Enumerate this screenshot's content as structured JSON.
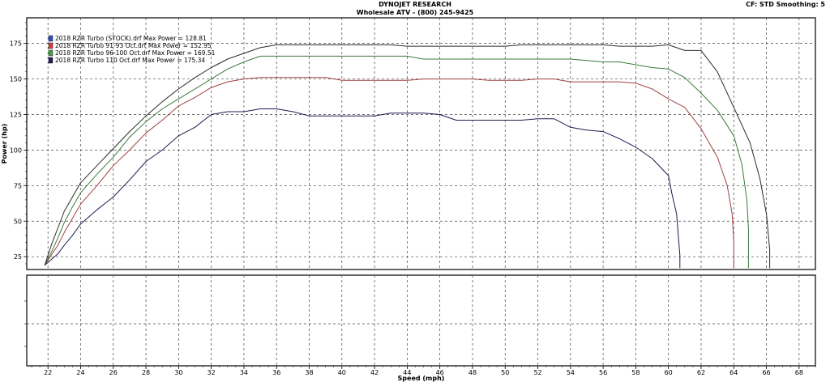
{
  "header": {
    "title": "DYNOJET RESEARCH",
    "subtitle": "Wholesale ATV - (800) 245-9425",
    "settings": "CF: STD  Smoothing: 5"
  },
  "chart_data": {
    "type": "line",
    "ylabel": "Power (hp)",
    "xlabel": "Speed (mph)",
    "xlim": [
      20.7,
      69.0
    ],
    "ylim": [
      16,
      193
    ],
    "x_ticks": [
      22,
      24,
      26,
      28,
      30,
      32,
      34,
      36,
      38,
      40,
      42,
      44,
      46,
      48,
      50,
      52,
      54,
      56,
      58,
      60,
      62,
      64,
      66,
      68
    ],
    "y_ticks": [
      25,
      50,
      75,
      100,
      125,
      150,
      175
    ],
    "grid": true,
    "legend_position": "top-left",
    "series": [
      {
        "name": "2018 RZR Turbo (STOCK).drf Max Power = 128.81",
        "color": "#1c1c50",
        "swatch": "#3050c8",
        "x": [
          21.8,
          22.2,
          22.6,
          23.0,
          23.5,
          24,
          25,
          26,
          27,
          28,
          29,
          30,
          31,
          32,
          33,
          34,
          35,
          36,
          37,
          38,
          39,
          40,
          41,
          42,
          43,
          44,
          45,
          46,
          47,
          48,
          49,
          50,
          51,
          52,
          53,
          54,
          55,
          56,
          57,
          58,
          59,
          60,
          60.2,
          60.5,
          60.6,
          60.7,
          60.7,
          60.7
        ],
        "y": [
          19,
          23,
          27,
          33,
          40,
          48,
          58,
          67,
          79,
          92,
          100,
          110,
          116,
          125,
          127,
          127,
          129,
          129,
          127,
          124,
          124,
          124,
          124,
          124,
          126,
          126,
          126,
          125,
          121,
          121,
          121,
          121,
          121,
          122,
          122,
          116,
          114,
          113,
          108,
          102,
          94,
          82,
          70,
          55,
          40,
          26,
          20,
          17
        ]
      },
      {
        "name": "2018 RZR Turbo 91-93 Oct.drf Max Power = 152.95",
        "color": "#a04040",
        "swatch": "#d04040",
        "x": [
          21.8,
          22.2,
          22.6,
          23.0,
          23.5,
          24,
          25,
          26,
          27,
          28,
          29,
          30,
          31,
          32,
          33,
          34,
          35,
          36,
          37,
          38,
          39,
          40,
          41,
          42,
          43,
          44,
          45,
          46,
          47,
          48,
          49,
          50,
          51,
          52,
          53,
          54,
          55,
          56,
          57,
          58,
          59,
          60,
          61,
          62,
          63,
          63.6,
          63.9,
          64.0,
          64.0,
          64.0
        ],
        "y": [
          19,
          26,
          33,
          42,
          52,
          62,
          75,
          89,
          100,
          112,
          121,
          131,
          137,
          144,
          148,
          150,
          151,
          151,
          151,
          151,
          151,
          149,
          149,
          149,
          149,
          149,
          150,
          150,
          150,
          150,
          149,
          149,
          149,
          150,
          150,
          148,
          148,
          148,
          148,
          147,
          143,
          136,
          130,
          115,
          95,
          75,
          55,
          35,
          22,
          17
        ]
      },
      {
        "name": "2018 RZR Turbo 96-100 Oct.drf Max Power = 169.51",
        "color": "#3c7a3c",
        "swatch": "#40a040",
        "x": [
          21.8,
          22.2,
          22.6,
          23.0,
          23.5,
          24,
          25,
          26,
          27,
          28,
          29,
          30,
          31,
          32,
          33,
          34,
          35,
          36,
          37,
          38,
          39,
          40,
          41,
          42,
          43,
          44,
          45,
          46,
          47,
          48,
          49,
          50,
          51,
          52,
          53,
          54,
          55,
          56,
          57,
          58,
          59,
          60,
          61,
          62,
          63,
          64,
          64.5,
          64.8,
          64.9,
          64.9,
          64.9
        ],
        "y": [
          19,
          28,
          38,
          49,
          60,
          70,
          83,
          95,
          109,
          120,
          129,
          136,
          143,
          150,
          157,
          162,
          166,
          166,
          166,
          166,
          166,
          166,
          166,
          166,
          166,
          166,
          164,
          164,
          164,
          164,
          164,
          164,
          164,
          164,
          164,
          164,
          163,
          162,
          162,
          160,
          158,
          157,
          151,
          140,
          128,
          110,
          90,
          65,
          45,
          25,
          17
        ]
      },
      {
        "name": "2018 RZR Turbo 110 Oct.drf Max Power = 175.34",
        "color": "#2a2a2a",
        "swatch": "#202060",
        "x": [
          21.8,
          22.2,
          22.6,
          23.0,
          23.5,
          24,
          25,
          26,
          27,
          28,
          29,
          30,
          31,
          32,
          33,
          34,
          35,
          36,
          37,
          38,
          39,
          40,
          41,
          42,
          43,
          44,
          45,
          46,
          47,
          48,
          49,
          50,
          51,
          52,
          53,
          54,
          55,
          56,
          57,
          58,
          59,
          60,
          61,
          62,
          63,
          64,
          65,
          65.6,
          66.0,
          66.2,
          66.2,
          66.2
        ],
        "y": [
          19,
          33,
          45,
          57,
          67,
          77,
          89,
          101,
          113,
          124,
          134,
          143,
          151,
          158,
          164,
          168,
          172,
          174,
          174,
          174,
          174,
          174,
          174,
          174,
          174,
          173,
          173,
          173,
          173,
          173,
          173,
          173,
          174,
          174,
          174,
          174,
          174,
          174,
          173,
          173,
          173,
          174,
          170,
          170,
          155,
          130,
          105,
          80,
          55,
          30,
          20,
          17
        ]
      }
    ]
  }
}
